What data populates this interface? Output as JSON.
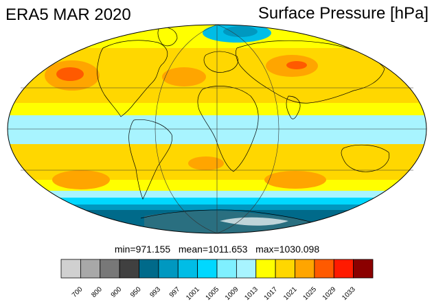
{
  "title_left": "ERA5 MAR 2020",
  "title_right": "Surface Pressure [hPa]",
  "stats": {
    "min_label": "min=",
    "min": "971.155",
    "mean_label": "mean=",
    "mean": "1011.653",
    "max_label": "max=",
    "max": "1030.098"
  },
  "colorbar": {
    "ticks": [
      "700",
      "800",
      "900",
      "950",
      "993",
      "997",
      "1001",
      "1005",
      "1009",
      "1013",
      "1017",
      "1021",
      "1025",
      "1029",
      "1033"
    ],
    "colors": [
      "#d0d0d0",
      "#a8a8a8",
      "#787878",
      "#404040",
      "#006a8a",
      "#0098c0",
      "#00bde6",
      "#00d8ff",
      "#7ff0ff",
      "#a8f4ff",
      "#ffff00",
      "#ffd700",
      "#ffa500",
      "#ff5a00",
      "#ff1a00",
      "#8b0000"
    ]
  }
}
